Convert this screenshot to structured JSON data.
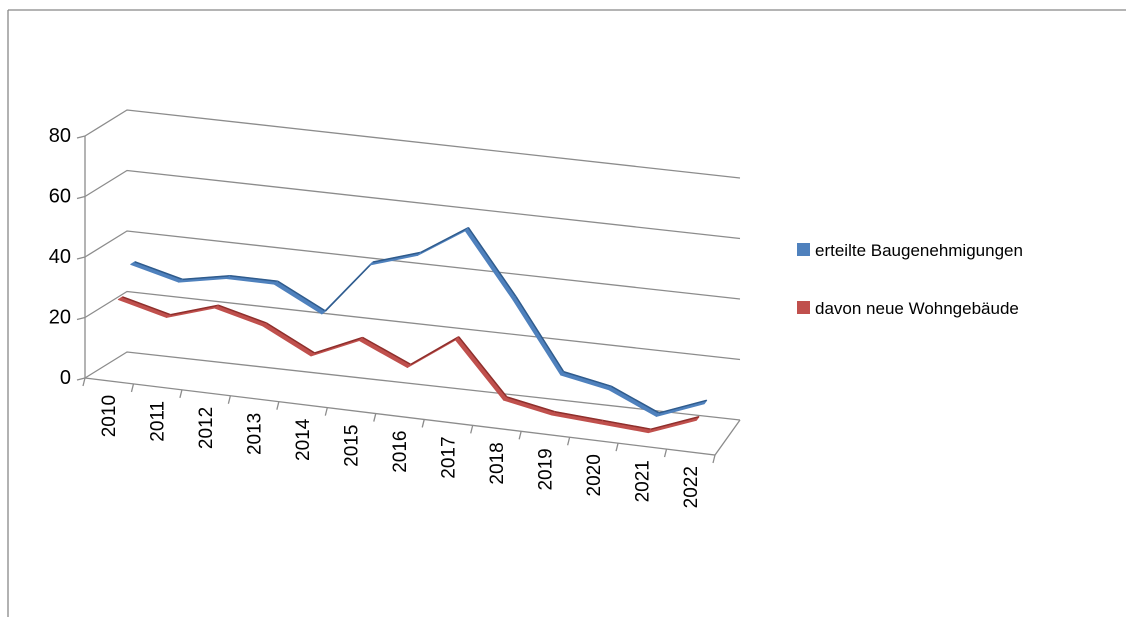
{
  "chart_data": {
    "type": "line",
    "categories": [
      "2010",
      "2011",
      "2012",
      "2013",
      "2014",
      "2015",
      "2016",
      "2017",
      "2018",
      "2019",
      "2020",
      "2021",
      "2022"
    ],
    "series": [
      {
        "name": "erteilte Baugenehmigungen",
        "color": "#4f81bd",
        "values": [
          34,
          30,
          33,
          33,
          25,
          43,
          48,
          58,
          37,
          14,
          11,
          4,
          10
        ]
      },
      {
        "name": "davon neue Wohngebäude",
        "color": "#c0504d",
        "values": [
          25,
          21,
          26,
          22,
          14,
          21,
          14,
          25,
          7,
          4,
          3,
          2,
          8
        ]
      }
    ],
    "y_ticks": [
      "0",
      "20",
      "40",
      "60",
      "80"
    ],
    "ylim": [
      0,
      80
    ],
    "style": "3d-line",
    "grid": true,
    "legend_position": "right"
  }
}
